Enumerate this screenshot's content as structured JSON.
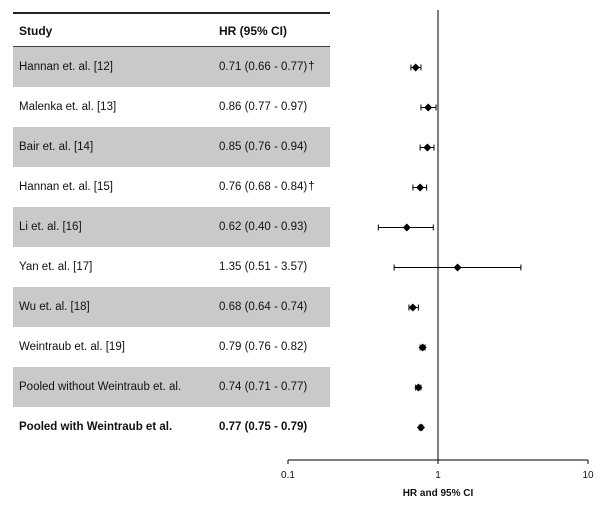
{
  "table": {
    "col_study": "Study",
    "col_hr": "HR (95% CI)"
  },
  "chart_data": {
    "type": "forest",
    "xlabel": "HR and 95% CI",
    "xscale": "log",
    "xlim": [
      0.1,
      10
    ],
    "xticks": [
      "0.1",
      "1",
      "10"
    ],
    "reference_line": 1,
    "rows": [
      {
        "study": "Hannan et. al. [12]",
        "hr_text": "0.71 (0.66 - 0.77)",
        "dagger": "†",
        "hr": 0.71,
        "lo": 0.66,
        "hi": 0.77,
        "shaded": true,
        "bold": false
      },
      {
        "study": "Malenka et. al. [13]",
        "hr_text": "0.86 (0.77 - 0.97)",
        "dagger": "",
        "hr": 0.86,
        "lo": 0.77,
        "hi": 0.97,
        "shaded": false,
        "bold": false
      },
      {
        "study": "Bair et. al. [14]",
        "hr_text": "0.85 (0.76 - 0.94)",
        "dagger": "",
        "hr": 0.85,
        "lo": 0.76,
        "hi": 0.94,
        "shaded": true,
        "bold": false
      },
      {
        "study": "Hannan et. al. [15]",
        "hr_text": "0.76 (0.68 - 0.84)",
        "dagger": "†",
        "hr": 0.76,
        "lo": 0.68,
        "hi": 0.84,
        "shaded": false,
        "bold": false
      },
      {
        "study": "Li et. al. [16]",
        "hr_text": "0.62 (0.40 - 0.93)",
        "dagger": "",
        "hr": 0.62,
        "lo": 0.4,
        "hi": 0.93,
        "shaded": true,
        "bold": false
      },
      {
        "study": "Yan et. al. [17]",
        "hr_text": "1.35 (0.51 - 3.57)",
        "dagger": "",
        "hr": 1.35,
        "lo": 0.51,
        "hi": 3.57,
        "shaded": false,
        "bold": false
      },
      {
        "study": "Wu et. al. [18]",
        "hr_text": "0.68 (0.64 - 0.74)",
        "dagger": "",
        "hr": 0.68,
        "lo": 0.64,
        "hi": 0.74,
        "shaded": true,
        "bold": false
      },
      {
        "study": "Weintraub et. al. [19]",
        "hr_text": "0.79 (0.76 - 0.82)",
        "dagger": "",
        "hr": 0.79,
        "lo": 0.76,
        "hi": 0.82,
        "shaded": false,
        "bold": false
      },
      {
        "study": "Pooled without Weintraub et. al.",
        "hr_text": "0.74 (0.71 - 0.77)",
        "dagger": "",
        "hr": 0.74,
        "lo": 0.71,
        "hi": 0.77,
        "shaded": true,
        "bold": false
      },
      {
        "study": "Pooled with Weintraub et al.",
        "hr_text": "0.77 (0.75 - 0.79)",
        "dagger": "",
        "hr": 0.77,
        "lo": 0.75,
        "hi": 0.79,
        "shaded": false,
        "bold": true
      }
    ]
  }
}
